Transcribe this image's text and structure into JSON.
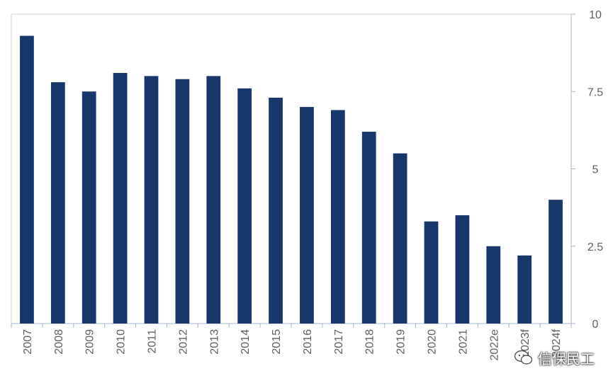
{
  "chart_data": {
    "type": "bar",
    "categories": [
      "2007",
      "2008",
      "2009",
      "2010",
      "2011",
      "2012",
      "2013",
      "2014",
      "2015",
      "2016",
      "2017",
      "2018",
      "2019",
      "2020",
      "2021",
      "2022e",
      "2023f",
      "2024f"
    ],
    "values": [
      9.3,
      7.8,
      7.5,
      8.1,
      8.0,
      7.9,
      8.0,
      7.6,
      7.3,
      7.0,
      6.9,
      6.2,
      5.5,
      3.3,
      3.5,
      2.5,
      2.2,
      4.0
    ],
    "title": "",
    "xlabel": "",
    "ylabel": "",
    "ylim": [
      0,
      10
    ],
    "yticks": [
      "0",
      "2.5",
      "5",
      "7.5",
      "10"
    ],
    "ytick_values": [
      0,
      2.5,
      5,
      7.5,
      10
    ],
    "y_axis_side": "right",
    "grid": false,
    "bar_color": "#17376b"
  },
  "watermark": {
    "text": "信保民工",
    "icon": "wechat-icon"
  }
}
